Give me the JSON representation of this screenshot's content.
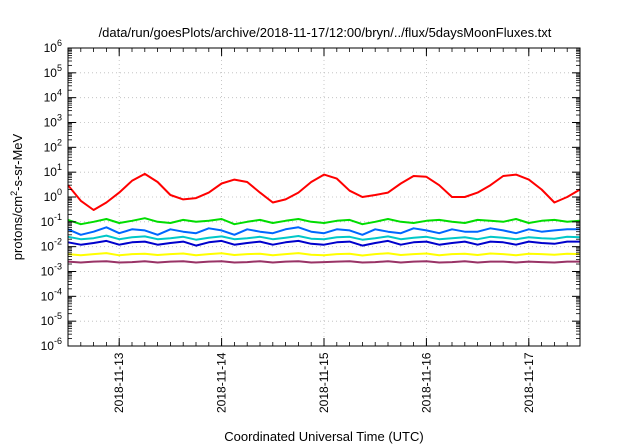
{
  "chart_data": {
    "type": "line",
    "title": "/data/run/goesPlots/archive/2018-11-17/12:00/bryn/../flux/5daysMoonFluxes.txt",
    "xlabel": "Coordinated Universal Time (UTC)",
    "ylabel": {
      "prefix": "protons/cm",
      "sup": "2",
      "suffix": "-s-sr-MeV"
    },
    "yscale": "log",
    "ylim_exp": [
      -6,
      6
    ],
    "y_ticks": [
      {
        "base": "10",
        "exp": "-6"
      },
      {
        "base": "10",
        "exp": "-5"
      },
      {
        "base": "10",
        "exp": "-4"
      },
      {
        "base": "10",
        "exp": "-3"
      },
      {
        "base": "10",
        "exp": "-2"
      },
      {
        "base": "10",
        "exp": "-1"
      },
      {
        "base": "10",
        "exp": "0"
      },
      {
        "base": "10",
        "exp": "1"
      },
      {
        "base": "10",
        "exp": "2"
      },
      {
        "base": "10",
        "exp": "3"
      },
      {
        "base": "10",
        "exp": "4"
      },
      {
        "base": "10",
        "exp": "5"
      },
      {
        "base": "10",
        "exp": "6"
      }
    ],
    "x_ticks": [
      "2018-11-13",
      "2018-11-14",
      "2018-11-15",
      "2018-11-16",
      "2018-11-17"
    ],
    "xlim": [
      "2018-11-12T12:00",
      "2018-11-17T12:00"
    ],
    "grid": true,
    "series_x_hours": [
      0,
      3,
      6,
      9,
      12,
      15,
      18,
      21,
      24,
      27,
      30,
      33,
      36,
      39,
      42,
      45,
      48,
      51,
      54,
      57,
      60,
      63,
      66,
      69,
      72,
      75,
      78,
      81,
      84,
      87,
      90,
      93,
      96,
      99,
      102,
      105,
      108,
      111,
      114,
      117,
      120
    ],
    "series": [
      {
        "color": "#ff0000",
        "values": [
          3.0,
          0.7,
          0.3,
          0.6,
          1.5,
          4.5,
          8.5,
          4.0,
          1.2,
          0.8,
          0.9,
          1.5,
          3.5,
          5.0,
          4.0,
          1.5,
          0.6,
          0.8,
          1.5,
          4.0,
          8.0,
          5.5,
          1.8,
          1.0,
          1.2,
          1.5,
          3.5,
          7.0,
          6.5,
          3.0,
          1.0,
          1.0,
          1.5,
          3.0,
          7.0,
          8.0,
          5.0,
          2.0,
          0.6,
          1.0,
          2.0
        ]
      },
      {
        "color": "#00dd00",
        "values": [
          0.12,
          0.08,
          0.1,
          0.13,
          0.09,
          0.11,
          0.14,
          0.1,
          0.09,
          0.12,
          0.1,
          0.11,
          0.13,
          0.08,
          0.1,
          0.12,
          0.09,
          0.11,
          0.13,
          0.1,
          0.09,
          0.11,
          0.12,
          0.08,
          0.1,
          0.13,
          0.1,
          0.09,
          0.11,
          0.12,
          0.1,
          0.09,
          0.12,
          0.11,
          0.1,
          0.13,
          0.09,
          0.11,
          0.12,
          0.1,
          0.11
        ]
      },
      {
        "color": "#0066ff",
        "values": [
          0.05,
          0.03,
          0.04,
          0.06,
          0.035,
          0.05,
          0.045,
          0.03,
          0.05,
          0.04,
          0.035,
          0.055,
          0.045,
          0.03,
          0.05,
          0.04,
          0.035,
          0.05,
          0.06,
          0.04,
          0.035,
          0.05,
          0.045,
          0.03,
          0.05,
          0.04,
          0.035,
          0.055,
          0.045,
          0.035,
          0.05,
          0.04,
          0.04,
          0.055,
          0.045,
          0.035,
          0.05,
          0.04,
          0.045,
          0.05,
          0.05
        ]
      },
      {
        "color": "#00c8c8",
        "values": [
          0.025,
          0.02,
          0.022,
          0.028,
          0.02,
          0.024,
          0.026,
          0.02,
          0.022,
          0.025,
          0.019,
          0.023,
          0.026,
          0.02,
          0.022,
          0.025,
          0.02,
          0.023,
          0.027,
          0.021,
          0.02,
          0.024,
          0.025,
          0.019,
          0.022,
          0.026,
          0.02,
          0.023,
          0.025,
          0.02,
          0.022,
          0.024,
          0.02,
          0.025,
          0.023,
          0.02,
          0.024,
          0.022,
          0.021,
          0.025,
          0.024
        ]
      },
      {
        "color": "#0000cc",
        "values": [
          0.015,
          0.012,
          0.014,
          0.017,
          0.012,
          0.015,
          0.016,
          0.012,
          0.014,
          0.016,
          0.011,
          0.015,
          0.017,
          0.012,
          0.014,
          0.016,
          0.012,
          0.015,
          0.017,
          0.013,
          0.012,
          0.015,
          0.016,
          0.011,
          0.014,
          0.017,
          0.012,
          0.015,
          0.016,
          0.012,
          0.014,
          0.016,
          0.012,
          0.016,
          0.015,
          0.012,
          0.016,
          0.014,
          0.013,
          0.016,
          0.016
        ]
      },
      {
        "color": "#ffff00",
        "values": [
          0.005,
          0.0045,
          0.005,
          0.0055,
          0.0045,
          0.005,
          0.0052,
          0.0046,
          0.005,
          0.0053,
          0.0045,
          0.005,
          0.0054,
          0.0046,
          0.005,
          0.0052,
          0.0045,
          0.005,
          0.0055,
          0.0047,
          0.0045,
          0.005,
          0.0052,
          0.0044,
          0.005,
          0.0054,
          0.0046,
          0.005,
          0.0053,
          0.0045,
          0.005,
          0.0052,
          0.0046,
          0.0053,
          0.005,
          0.0045,
          0.0052,
          0.005,
          0.0047,
          0.0052,
          0.005
        ]
      },
      {
        "color": "#993366",
        "values": [
          0.0025,
          0.0023,
          0.0025,
          0.0026,
          0.0023,
          0.0024,
          0.0026,
          0.0023,
          0.0025,
          0.0026,
          0.0023,
          0.0025,
          0.0026,
          0.0023,
          0.0024,
          0.0026,
          0.0023,
          0.0025,
          0.0026,
          0.0023,
          0.0024,
          0.0025,
          0.0026,
          0.0023,
          0.0024,
          0.0026,
          0.0023,
          0.0025,
          0.0026,
          0.0023,
          0.0024,
          0.0026,
          0.0023,
          0.0025,
          0.0025,
          0.0023,
          0.0025,
          0.0024,
          0.0023,
          0.0025,
          0.0025
        ]
      }
    ]
  }
}
